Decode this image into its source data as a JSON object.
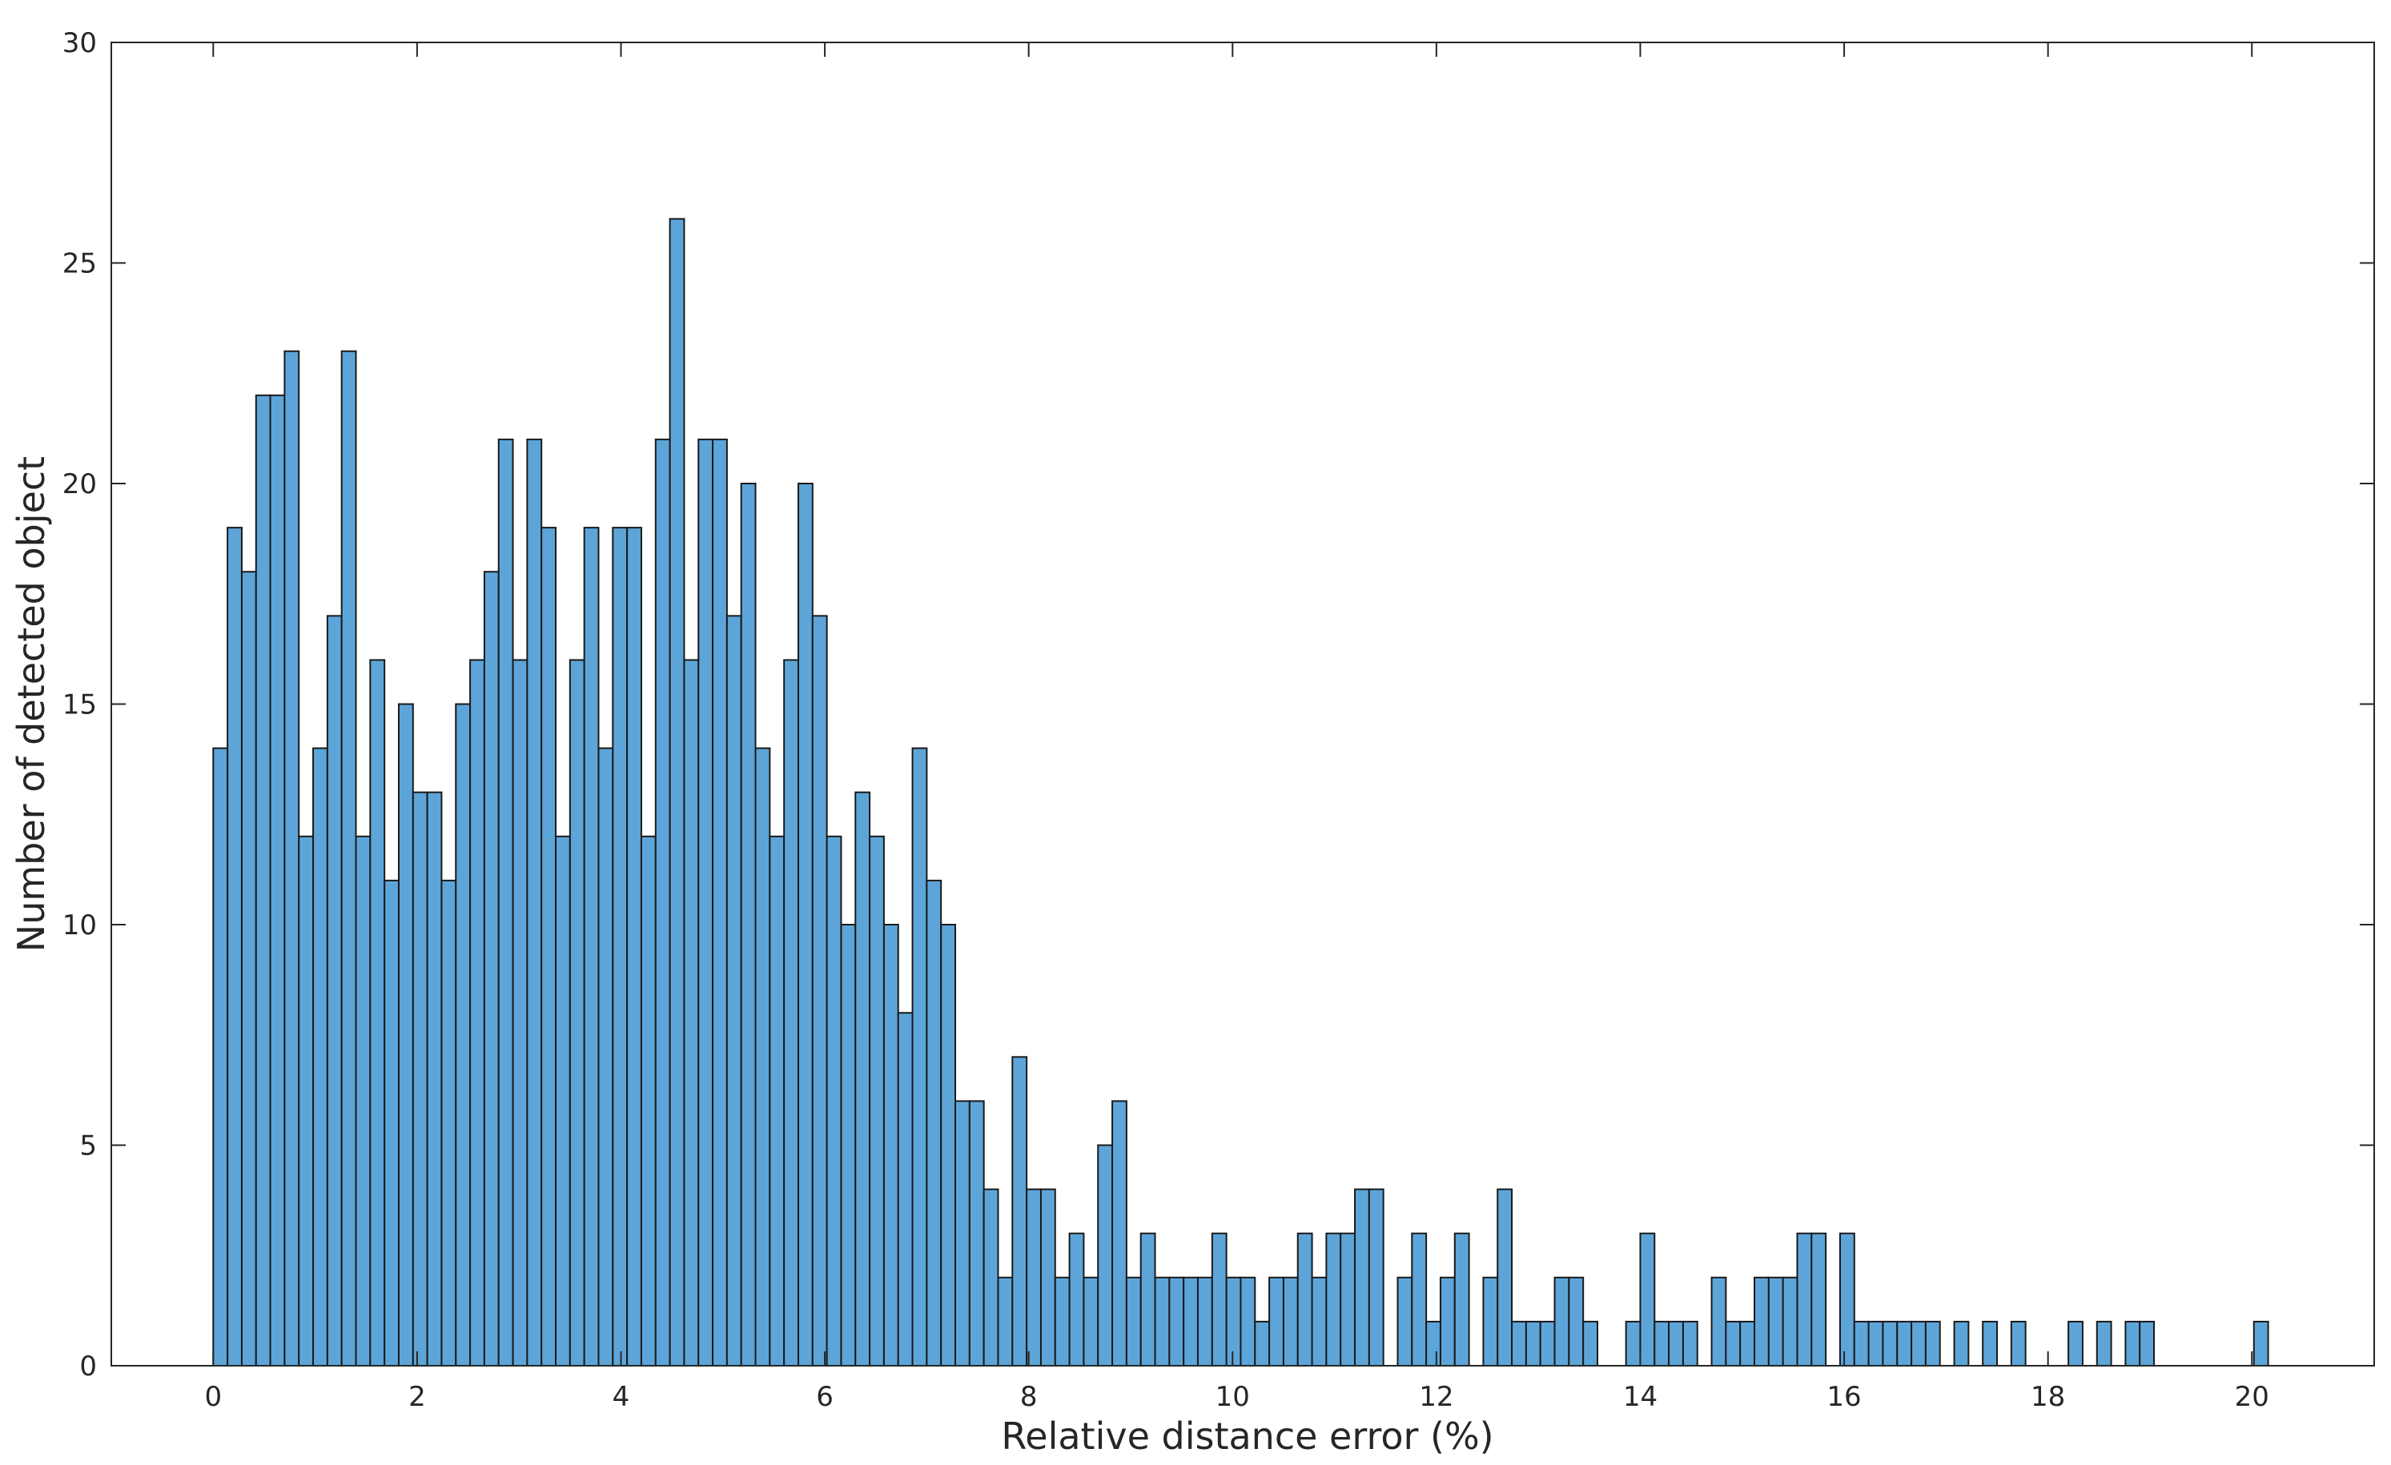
{
  "chart_data": {
    "type": "bar",
    "title": "",
    "xlabel": "Relative distance error (%)",
    "ylabel": "Number of detected object",
    "xlim": [
      -1,
      21.2
    ],
    "ylim": [
      0,
      30
    ],
    "grid": false,
    "bin_width": 0.14,
    "x_start": 0,
    "x_ticks": [
      0,
      2,
      4,
      6,
      8,
      10,
      12,
      14,
      16,
      18,
      20
    ],
    "y_ticks": [
      0,
      5,
      10,
      15,
      20,
      25,
      30
    ],
    "bar_fill": "#5da5d9",
    "bar_edge": "#1a1a1a",
    "values": [
      14,
      19,
      18,
      22,
      22,
      23,
      12,
      14,
      17,
      23,
      12,
      16,
      11,
      15,
      13,
      13,
      11,
      15,
      16,
      18,
      21,
      16,
      21,
      19,
      12,
      16,
      19,
      14,
      19,
      19,
      12,
      21,
      26,
      16,
      21,
      21,
      17,
      20,
      14,
      12,
      16,
      20,
      17,
      12,
      10,
      13,
      12,
      10,
      8,
      14,
      11,
      10,
      6,
      6,
      4,
      2,
      7,
      4,
      4,
      2,
      3,
      2,
      5,
      6,
      2,
      3,
      2,
      2,
      2,
      2,
      3,
      2,
      2,
      1,
      2,
      2,
      3,
      2,
      3,
      3,
      4,
      4,
      0,
      2,
      3,
      1,
      2,
      3,
      0,
      2,
      4,
      1,
      1,
      1,
      2,
      2,
      1,
      0,
      0,
      1,
      3,
      1,
      1,
      1,
      0,
      2,
      1,
      1,
      2,
      2,
      2,
      3,
      3,
      0,
      3,
      1,
      1,
      1,
      1,
      1,
      1,
      0,
      1,
      0,
      1,
      0,
      1,
      0,
      0,
      0,
      1,
      0,
      1,
      0,
      1,
      1,
      0,
      0,
      0,
      0,
      0,
      0,
      0,
      1
    ]
  }
}
